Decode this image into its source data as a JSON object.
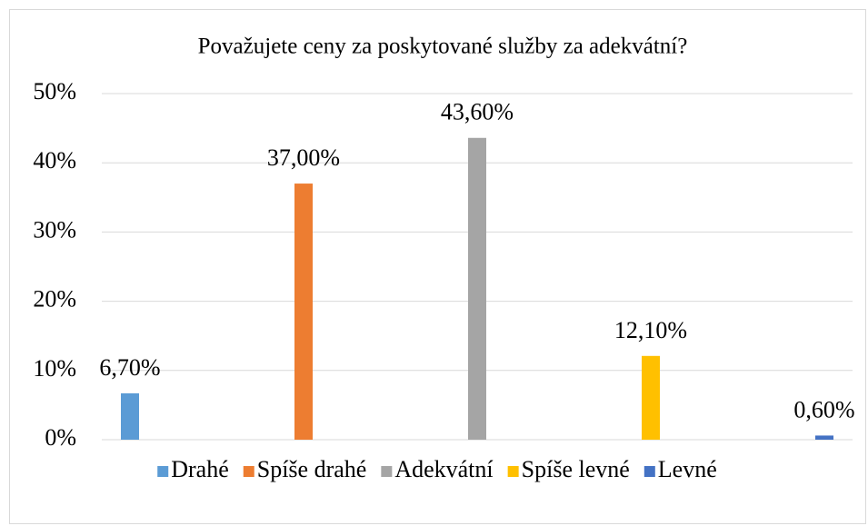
{
  "chart_data": {
    "type": "bar",
    "title": "Považujete ceny za poskytované služby za adekvátní?",
    "series": [
      {
        "name": "Drahé",
        "color": "#5B9BD5",
        "values": [
          6.7
        ],
        "value_labels": [
          "6,70%"
        ]
      },
      {
        "name": "Spíše drahé",
        "color": "#ED7D31",
        "values": [
          37.0
        ],
        "value_labels": [
          "37,00%"
        ]
      },
      {
        "name": "Adekvátní",
        "color": "#A5A5A5",
        "values": [
          43.6
        ],
        "value_labels": [
          "43,60%"
        ]
      },
      {
        "name": "Spíše levné",
        "color": "#FFC000",
        "values": [
          12.1
        ],
        "value_labels": [
          "12,10%"
        ]
      },
      {
        "name": "Levné",
        "color": "#4472C4",
        "values": [
          0.6
        ],
        "value_labels": [
          "0,60%"
        ]
      }
    ],
    "ylim": [
      0,
      50
    ],
    "yticks": [
      {
        "value": 0,
        "label": "0%"
      },
      {
        "value": 10,
        "label": "10%"
      },
      {
        "value": 20,
        "label": "20%"
      },
      {
        "value": 30,
        "label": "30%"
      },
      {
        "value": 40,
        "label": "40%"
      },
      {
        "value": 50,
        "label": "50%"
      }
    ],
    "grid": true,
    "legend": "bottom"
  }
}
